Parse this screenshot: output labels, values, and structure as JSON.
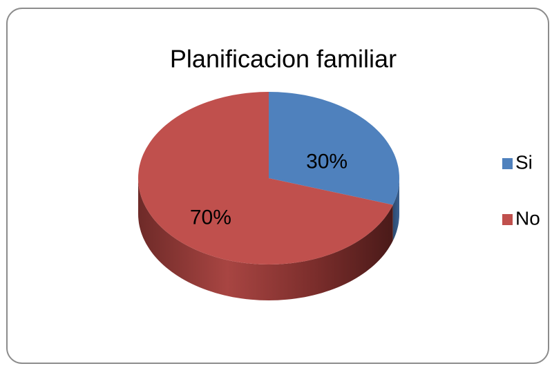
{
  "chart_data": {
    "type": "pie",
    "title": "Planificacion familiar",
    "categories": [
      "Si",
      "No"
    ],
    "values": [
      30,
      70
    ],
    "value_labels": [
      "30%",
      "70%"
    ],
    "colors": [
      "#4f81bd",
      "#c0504d"
    ],
    "legend": "right"
  }
}
